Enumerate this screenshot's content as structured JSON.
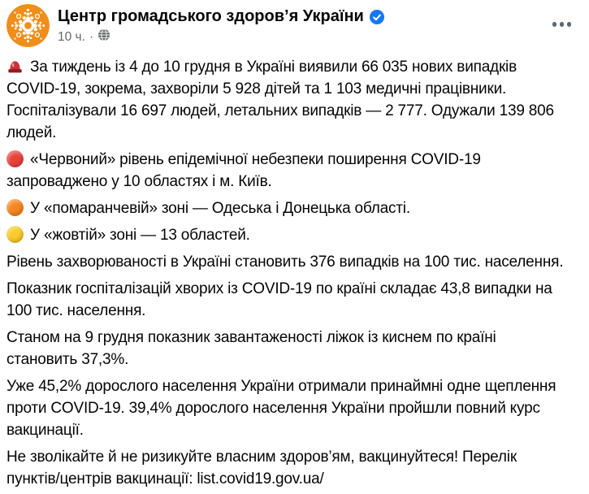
{
  "header": {
    "page_name": "Центр громадського здоров’я України",
    "verified_badge": "verified-badge",
    "timestamp": "10 ч.",
    "separator": "·",
    "audience_icon": "globe-public",
    "more_button": "more-options"
  },
  "post": {
    "paragraphs": [
      {
        "icon": "siren",
        "lines": [
          "За тиждень із 4 до 10 грудня в Україні виявили 66 035 нових випадків",
          "COVID-19, зокрема, захворіли 5 928 дітей та 1 103 медичні працівники.",
          "Госпіталізували 16 697 людей, летальних випадків — 2 777. Одужали 139 806",
          "людей."
        ]
      },
      {
        "icon": "red-circle",
        "lines": [
          "«Червоний» рівень епідемічної небезпеки поширення COVID-19",
          "запроваджено у 10 областях і м. Київ."
        ]
      },
      {
        "icon": "orange-circle",
        "lines": [
          "У «помаранчевій» зоні — Одеська і Донецька області."
        ]
      },
      {
        "icon": "yellow-circle",
        "lines": [
          "У «жовтій» зоні — 13 областей."
        ]
      },
      {
        "icon": null,
        "lines": [
          "Рівень захворюваності в Україні становить 376 випадків на 100 тис. населення."
        ]
      },
      {
        "icon": null,
        "lines": [
          "Показник госпіталізацій хворих із COVID-19 по країні складає 43,8 випадки на",
          "100 тис. населення."
        ]
      },
      {
        "icon": null,
        "lines": [
          "Станом на 9 грудня показник завантаженості ліжок із киснем по країні",
          "становить 37,3%."
        ]
      },
      {
        "icon": null,
        "lines": [
          "Уже 45,2% дорослого населення України отримали принаймні одне щеплення",
          "проти COVID-19. 39,4% дорослого населення України пройшли повний курс",
          "вакцинації."
        ]
      },
      {
        "icon": null,
        "lines": [
          "Не зволікайте й не ризикуйте власним здоров’ям, вакцинуйтеся! Перелік",
          "пунктів/центрів вакцинації: list.covid19.gov.ua/"
        ]
      }
    ]
  },
  "colors": {
    "text": "#050505",
    "muted": "#65676B",
    "badge_blue": "#1877F2",
    "avatar_orange": "#EF8E1B",
    "red_zone": "#E8423B",
    "orange_zone": "#F5871F",
    "yellow_zone": "#FBCB2C",
    "siren_red": "#CE2F35",
    "siren_base": "#8E1E22"
  }
}
